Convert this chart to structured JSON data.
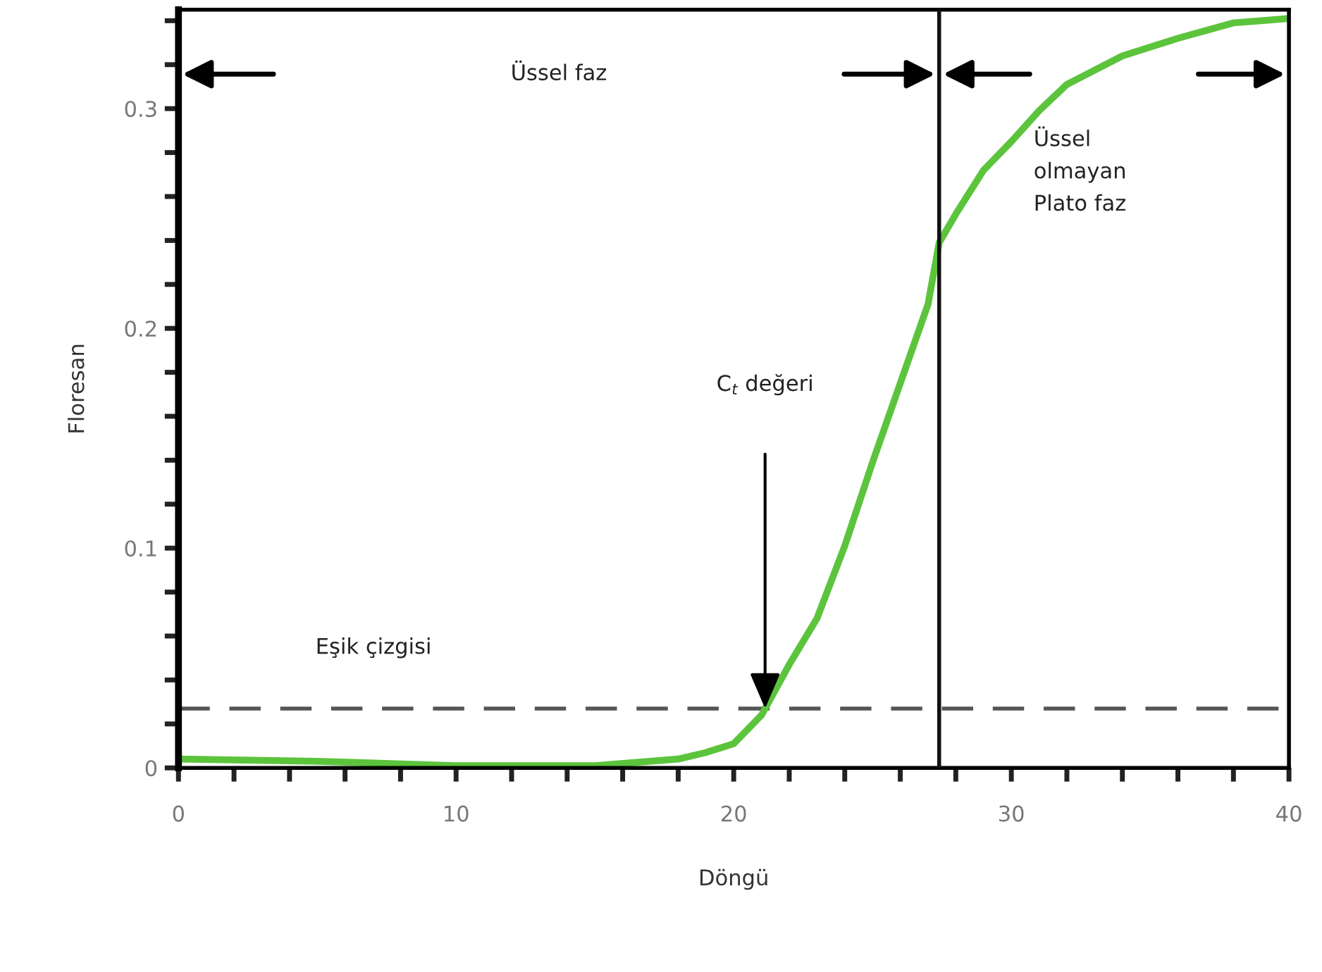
{
  "chart_data": {
    "type": "line",
    "xlabel": "Döngü",
    "ylabel": "Floresan",
    "x": [
      0,
      5,
      10,
      15,
      18,
      19,
      20,
      21,
      22,
      23,
      24,
      25,
      26,
      27,
      27.4,
      28,
      29,
      30,
      31,
      32,
      34,
      36,
      38,
      40
    ],
    "series": [
      {
        "color": "#5cc43c",
        "values": [
          0.004,
          0.003,
          0.001,
          0.001,
          0.004,
          0.007,
          0.011,
          0.024,
          0.047,
          0.068,
          0.101,
          0.139,
          0.175,
          0.211,
          0.239,
          0.252,
          0.272,
          0.285,
          0.299,
          0.311,
          0.324,
          0.332,
          0.339,
          0.341
        ]
      }
    ],
    "xlim": [
      0,
      40
    ],
    "ylim": [
      0,
      0.345
    ],
    "xticks": [
      0,
      {
        "value": 2,
        "label": null
      },
      {
        "value": 4,
        "label": null
      },
      {
        "value": 6,
        "label": null
      },
      {
        "value": 8,
        "label": null
      },
      10,
      {
        "value": 12,
        "label": null
      },
      {
        "value": 14,
        "label": null
      },
      {
        "value": 16,
        "label": null
      },
      {
        "value": 18,
        "label": null
      },
      20,
      {
        "value": 22,
        "label": null
      },
      {
        "value": 24,
        "label": null
      },
      {
        "value": 26,
        "label": null
      },
      {
        "value": 28,
        "label": null
      },
      30,
      {
        "value": 32,
        "label": null
      },
      {
        "value": 34,
        "label": null
      },
      {
        "value": 36,
        "label": null
      },
      {
        "value": 38,
        "label": null
      },
      40
    ],
    "yticks": [
      0,
      {
        "value": 0.02,
        "label": null
      },
      {
        "value": 0.04,
        "label": null
      },
      {
        "value": 0.06,
        "label": null
      },
      {
        "value": 0.08,
        "label": null
      },
      0.1,
      {
        "value": 0.12,
        "label": null
      },
      {
        "value": 0.14,
        "label": null
      },
      {
        "value": 0.16,
        "label": null
      },
      {
        "value": 0.18,
        "label": null
      },
      0.2,
      {
        "value": 0.22,
        "label": null
      },
      {
        "value": 0.24,
        "label": null
      },
      {
        "value": 0.26,
        "label": null
      },
      {
        "value": 0.28,
        "label": null
      },
      0.3,
      {
        "value": 0.32,
        "label": null
      },
      {
        "value": 0.34,
        "label": null
      }
    ],
    "ref_lines": [
      {
        "axis": "y",
        "value": 0.027,
        "label": "Eşik çizgisi",
        "color": "#555555",
        "line_style": "dashed"
      },
      {
        "axis": "x",
        "value": 27.4,
        "color": "#111111",
        "line_style": "solid"
      }
    ],
    "annotations": [
      "Üssel faz",
      "Üssel\nolmayan\nPlato faz",
      "C$_{t}$ değeri"
    ],
    "grid": false,
    "legend": false,
    "marker": "none",
    "line_style": "solid"
  }
}
